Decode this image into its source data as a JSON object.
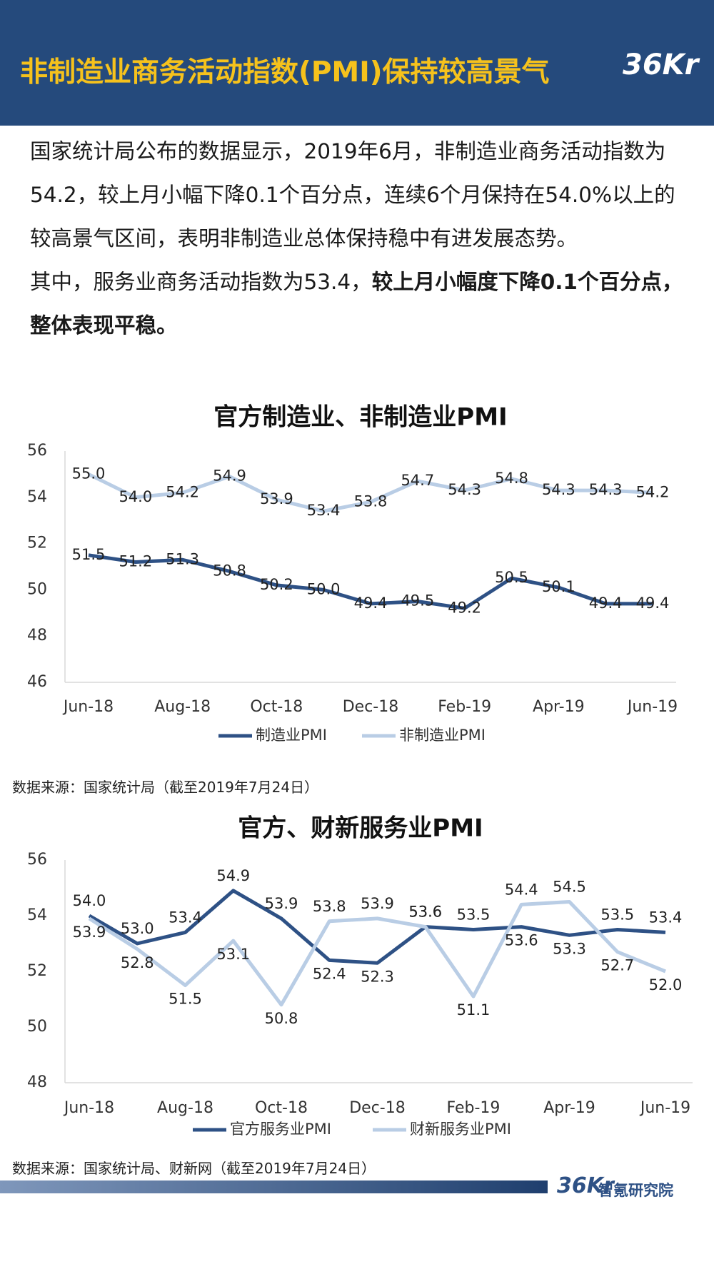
{
  "header": {
    "title": "非制造业商务活动指数(PMI)保持较高景气",
    "logo": "36Kr"
  },
  "body": {
    "paragraph1": "国家统计局公布的数据显示，2019年6月，非制造业商务活动指数为54.2，较上月小幅下降0.1个百分点，连续6个月保持在54.0%以上的较高景气区间，表明非制造业总体保持稳中有进发展态势。",
    "paragraph2": "其中，服务业商务活动指数为53.4，",
    "paragraph2_bold": "较上月小幅度下降0.1个百分点，整体表现平稳。"
  },
  "chart_data": [
    {
      "type": "line",
      "title": "官方制造业、非制造业PMI",
      "categories": [
        "Jun-18",
        null,
        "Aug-18",
        null,
        "Oct-18",
        null,
        "Dec-18",
        null,
        "Feb-19",
        null,
        "Apr-19",
        null,
        "Jun-19"
      ],
      "series": [
        {
          "name": "制造业PMI",
          "color": "#2e5185",
          "values": [
            51.5,
            51.2,
            51.3,
            50.8,
            50.2,
            50.0,
            49.4,
            49.5,
            49.2,
            50.5,
            50.1,
            49.4,
            49.4
          ],
          "value_labels": [
            "51.5",
            "51.2",
            "51.3",
            "50.8",
            "50.2",
            "50.0",
            "49.4",
            "49.5",
            "49.2",
            "50.5",
            "50.1",
            "49.4",
            "49.4"
          ]
        },
        {
          "name": "非制造业PMI",
          "color": "#b9cde5",
          "values": [
            55.0,
            54.0,
            54.2,
            54.9,
            53.9,
            53.4,
            53.8,
            54.7,
            54.3,
            54.8,
            54.3,
            54.3,
            54.2
          ],
          "value_labels": [
            "55.0",
            "54.0",
            "54.2",
            "54.9",
            "53.9",
            "53.4",
            "53.8",
            "54.7",
            "54.3",
            "54.8",
            "54.3",
            "54.3",
            "54.2"
          ]
        }
      ],
      "ylim": [
        46,
        56
      ],
      "yticks": [
        46,
        48,
        50,
        52,
        54,
        56
      ],
      "grid": false,
      "legend": "bottom",
      "source": "数据来源：国家统计局（截至2019年7月24日）"
    },
    {
      "type": "line",
      "title": "官方、财新服务业PMI",
      "categories": [
        "Jun-18",
        null,
        "Aug-18",
        null,
        "Oct-18",
        null,
        "Dec-18",
        null,
        "Feb-19",
        null,
        "Apr-19",
        null,
        "Jun-19"
      ],
      "series": [
        {
          "name": "官方服务业PMI",
          "color": "#2e5185",
          "values": [
            54.0,
            53.0,
            53.4,
            54.9,
            53.9,
            52.4,
            52.3,
            53.6,
            53.5,
            53.6,
            53.3,
            53.5,
            53.4
          ],
          "value_labels": [
            "54.0",
            "53.0",
            "53.4",
            "54.9",
            "53.9",
            "52.4",
            "52.3",
            "53.6",
            "53.5",
            "53.6",
            "53.3",
            "53.5",
            "53.4"
          ]
        },
        {
          "name": "财新服务业PMI",
          "color": "#b9cde5",
          "values": [
            53.9,
            52.8,
            51.5,
            53.1,
            50.8,
            53.8,
            53.9,
            53.6,
            51.1,
            54.4,
            54.5,
            52.7,
            52.0
          ],
          "value_labels": [
            "53.9",
            "52.8",
            "51.5",
            "53.1",
            "50.8",
            "53.8",
            "53.9",
            "53.6",
            "51.1",
            "54.4",
            "54.5",
            "52.7",
            "52.0"
          ]
        }
      ],
      "ylim": [
        48,
        56
      ],
      "yticks": [
        48,
        50,
        52,
        54,
        56
      ],
      "grid": false,
      "legend": "bottom",
      "source": "数据来源：国家统计局、财新网（截至2019年7月24日）"
    }
  ],
  "footer": {
    "logo": "36Kr",
    "name": "智氪研究院"
  }
}
